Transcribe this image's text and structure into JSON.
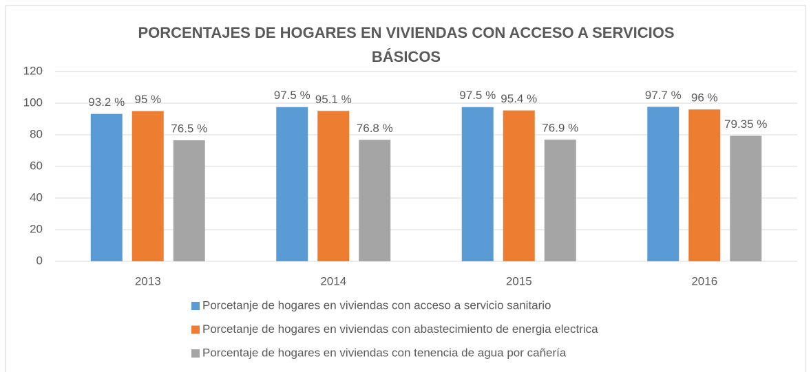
{
  "chart_data": {
    "type": "bar",
    "title": "PORCENTAJES DE HOGARES EN VIVIENDAS CON ACCESO A SERVICIOS BÁSICOS",
    "categories": [
      "2013",
      "2014",
      "2015",
      "2016"
    ],
    "series": [
      {
        "name": "Porcetanje de hogares en viviendas con acceso a servicio sanitario",
        "color": "#5b9bd5",
        "values": [
          93.2,
          97.5,
          97.5,
          97.7
        ],
        "value_labels": [
          "93.2 %",
          "97.5 %",
          "97.5 %",
          "97.7 %"
        ]
      },
      {
        "name": "Porcetanje de hogares en viviendas con abastecimiento de energia electrica",
        "color": "#ed7d31",
        "values": [
          95,
          95.1,
          95.4,
          96
        ],
        "value_labels": [
          "95 %",
          "95.1 %",
          "95.4 %",
          "96 %"
        ]
      },
      {
        "name": "Porcentaje de hogares en viviendas con tenencia de agua por cañería",
        "color": "#a5a5a5",
        "values": [
          76.5,
          76.8,
          76.9,
          79.35
        ],
        "value_labels": [
          "76.5 %",
          "76.8 %",
          "76.9 %",
          "79.35 %"
        ]
      }
    ],
    "ylim": [
      0,
      120
    ],
    "yticks": [
      0,
      20,
      40,
      60,
      80,
      100,
      120
    ],
    "grid": true,
    "legend": "bottom"
  }
}
